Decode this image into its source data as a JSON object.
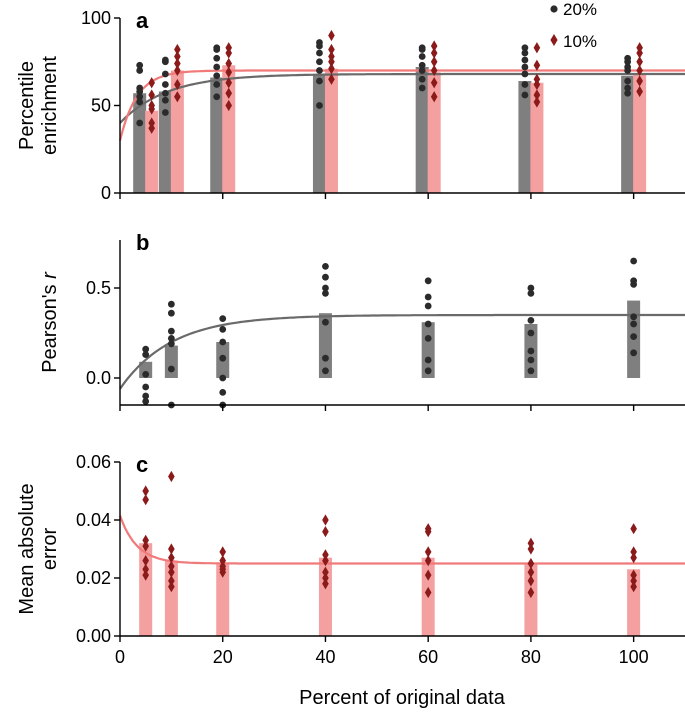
{
  "colors": {
    "series_20": "#2b2b2b",
    "series_10": "#8b1a1a",
    "bar_20": "#7f7f7f",
    "bar_10": "#f4a0a0",
    "fit_20": "#6a6a6a",
    "fit_10": "#f07a7a"
  },
  "legend": {
    "s20": "20%",
    "s10": "10%",
    "placement": "top-right"
  },
  "xlabel": "Percent of original data",
  "chart_data": [
    {
      "panel": "a",
      "type": "bar+scatter+line",
      "ylabel_lines": [
        "Percentile",
        "enrichment"
      ],
      "xlim": [
        0,
        110
      ],
      "ylim": [
        0,
        100
      ],
      "yticks": [
        0,
        50,
        100
      ],
      "xticks": [
        0,
        20,
        40,
        60,
        80,
        100
      ],
      "x": [
        5,
        10,
        20,
        40,
        60,
        80,
        100
      ],
      "series": [
        {
          "name": "20%",
          "means": [
            57,
            58,
            66,
            68,
            72,
            64,
            67
          ],
          "points": [
            [
              73,
              70,
              60,
              58,
              55,
              52,
              40
            ],
            [
              76,
              75,
              68,
              62,
              57,
              53,
              46
            ],
            [
              83,
              82,
              77,
              72,
              67,
              62,
              55
            ],
            [
              86,
              84,
              80,
              75,
              70,
              64,
              50
            ],
            [
              83,
              82,
              78,
              73,
              70,
              65,
              60
            ],
            [
              83,
              80,
              76,
              72,
              68,
              62,
              56
            ],
            [
              77,
              75,
              72,
              70,
              64,
              60,
              57
            ]
          ],
          "fit": {
            "start": 40,
            "plateau": 68,
            "rate": 0.11
          }
        },
        {
          "name": "10%",
          "means": [
            47,
            70,
            73,
            71,
            69,
            63,
            68
          ],
          "points": [
            [
              63,
              56,
              50,
              48,
              40,
              37
            ],
            [
              82,
              78,
              74,
              70,
              62,
              55
            ],
            [
              83,
              80,
              74,
              69,
              63,
              57,
              50
            ],
            [
              90,
              82,
              78,
              75,
              71,
              65
            ],
            [
              84,
              80,
              75,
              70,
              63,
              55
            ],
            [
              83,
              73,
              65,
              62,
              56,
              52
            ],
            [
              83,
              80,
              75,
              70,
              64,
              58
            ]
          ],
          "fit": {
            "start": 30,
            "plateau": 70,
            "rate": 0.3
          }
        }
      ]
    },
    {
      "panel": "b",
      "type": "bar+scatter+line",
      "ylabel": "Pearson's ",
      "ylabel_italic": "r",
      "xlim": [
        0,
        110
      ],
      "ylim": [
        -0.2,
        0.75
      ],
      "yticks": [
        0.0,
        0.5
      ],
      "ytick_labels": [
        "0.0",
        "0.5"
      ],
      "xticks": [
        0,
        20,
        40,
        60,
        80,
        100
      ],
      "x": [
        5,
        10,
        20,
        40,
        60,
        80,
        100
      ],
      "series": [
        {
          "name": "20%",
          "means": [
            0.09,
            0.18,
            0.2,
            0.36,
            0.31,
            0.3,
            0.43
          ],
          "points": [
            [
              0.16,
              0.13,
              0.02,
              -0.05,
              -0.1,
              -0.13
            ],
            [
              0.41,
              0.36,
              0.26,
              0.22,
              0.19,
              0.05,
              -0.15
            ],
            [
              0.33,
              0.27,
              0.2,
              0.11,
              0.0,
              -0.08,
              -0.15
            ],
            [
              0.62,
              0.56,
              0.5,
              0.47,
              0.31,
              0.11,
              0.04
            ],
            [
              0.54,
              0.45,
              0.4,
              0.3,
              0.22,
              0.1,
              0.04
            ],
            [
              0.5,
              0.47,
              0.32,
              0.25,
              0.15,
              0.1,
              0.04
            ],
            [
              0.65,
              0.54,
              0.52,
              0.34,
              0.3,
              0.23,
              0.14
            ]
          ],
          "fit": {
            "start": -0.06,
            "plateau": 0.35,
            "rate": 0.1
          }
        }
      ]
    },
    {
      "panel": "c",
      "type": "bar+scatter+line",
      "ylabel_lines": [
        "Mean absolute",
        "error"
      ],
      "xlim": [
        0,
        110
      ],
      "ylim": [
        0,
        0.06
      ],
      "yticks": [
        0.0,
        0.02,
        0.04,
        0.06
      ],
      "ytick_labels": [
        "0.00",
        "0.02",
        "0.04",
        "0.06"
      ],
      "xticks": [
        0,
        20,
        40,
        60,
        80,
        100
      ],
      "xtick_labels": [
        "0",
        "20",
        "40",
        "60",
        "80",
        "100"
      ],
      "x": [
        5,
        10,
        20,
        40,
        60,
        80,
        100
      ],
      "series": [
        {
          "name": "10%",
          "means": [
            0.032,
            0.026,
            0.025,
            0.027,
            0.027,
            0.025,
            0.023
          ],
          "points": [
            [
              0.05,
              0.047,
              0.033,
              0.031,
              0.026,
              0.023,
              0.021
            ],
            [
              0.055,
              0.03,
              0.027,
              0.024,
              0.022,
              0.019,
              0.017
            ],
            [
              0.029,
              0.026,
              0.024,
              0.023,
              0.022
            ],
            [
              0.04,
              0.036,
              0.028,
              0.026,
              0.022,
              0.02,
              0.018
            ],
            [
              0.037,
              0.036,
              0.029,
              0.026,
              0.021,
              0.015
            ],
            [
              0.032,
              0.03,
              0.025,
              0.022,
              0.019,
              0.015
            ],
            [
              0.037,
              0.029,
              0.027,
              0.021,
              0.019,
              0.017
            ]
          ],
          "fit": {
            "start": 0.0415,
            "plateau": 0.025,
            "rate": 0.3
          }
        }
      ]
    }
  ]
}
